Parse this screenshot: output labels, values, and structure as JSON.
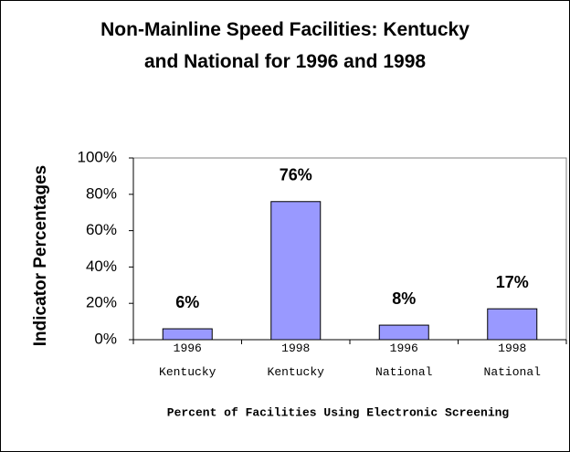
{
  "chart_data": {
    "type": "bar",
    "title": "Non-Mainline Speed Facilities: Kentucky and National for 1996 and 1998",
    "y_label": "Indicator Percentages",
    "x_label": "Percent of Facilities Using Electronic Screening",
    "categories": [
      "1996 Kentucky",
      "1998 Kentucky",
      "1996 National",
      "1998 National"
    ],
    "values": [
      6,
      76,
      8,
      17
    ],
    "value_labels": [
      "6%",
      "76%",
      "8%",
      "17%"
    ],
    "color": "#9999ff",
    "ylim": [
      0,
      100
    ],
    "yticks": [
      {
        "value": 0,
        "label": "0%"
      },
      {
        "value": 20,
        "label": "20%"
      },
      {
        "value": 40,
        "label": "40%"
      },
      {
        "value": 60,
        "label": "60%"
      },
      {
        "value": 80,
        "label": "80%"
      },
      {
        "value": 100,
        "label": "100%"
      }
    ],
    "grid": false
  }
}
